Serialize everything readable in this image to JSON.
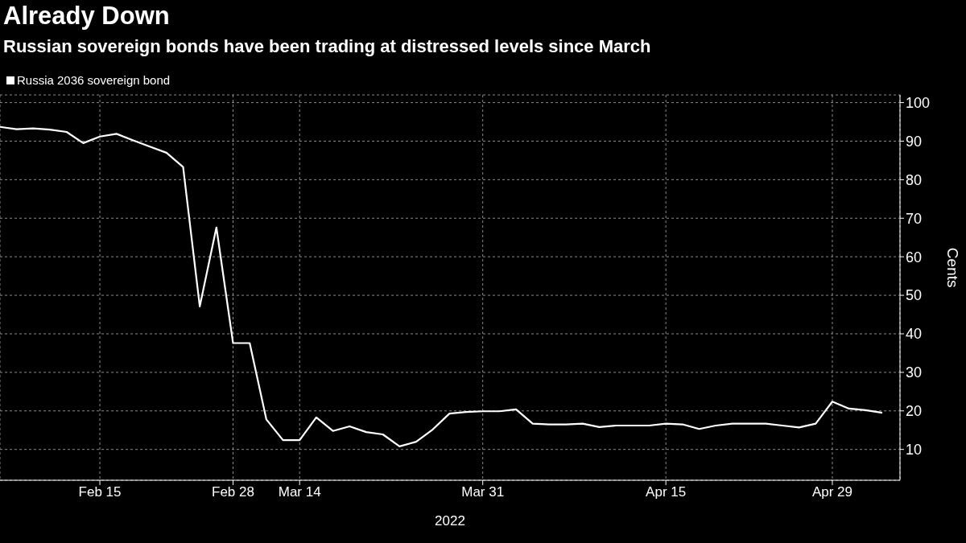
{
  "chart_data": {
    "type": "line",
    "title": "Already Down",
    "subtitle": "Russian sovereign bonds have been trading at distressed levels since March",
    "xlabel": "2022",
    "ylabel": "Cents",
    "categories": [
      null,
      null,
      null,
      null,
      null,
      null,
      "Feb 15",
      null,
      null,
      null,
      null,
      null,
      null,
      null,
      "Feb 28",
      null,
      null,
      null,
      "Mar 14",
      null,
      null,
      null,
      null,
      null,
      null,
      null,
      null,
      null,
      null,
      "Mar 31",
      null,
      null,
      null,
      null,
      null,
      null,
      null,
      null,
      null,
      null,
      "Apr 15",
      null,
      null,
      null,
      null,
      null,
      null,
      null,
      null,
      null,
      "Apr 29",
      null,
      null,
      null
    ],
    "series": [
      {
        "name": "Russia 2036 sovereign bond",
        "color": "#ffffff",
        "values": [
          93.7,
          93.1,
          93.3,
          93.0,
          92.4,
          89.5,
          91.2,
          91.9,
          90.2,
          88.6,
          87.0,
          83.3,
          47.1,
          67.6,
          37.6,
          37.6,
          17.8,
          12.4,
          12.4,
          18.3,
          14.8,
          16.0,
          14.5,
          13.9,
          10.8,
          12.0,
          15.2,
          19.3,
          19.7,
          19.9,
          19.9,
          20.4,
          16.7,
          16.5,
          16.5,
          16.7,
          15.8,
          16.2,
          16.2,
          16.2,
          16.7,
          16.5,
          15.3,
          16.2,
          16.7,
          16.7,
          16.7,
          16.2,
          15.7,
          16.7,
          22.4,
          20.6,
          20.2,
          19.5
        ]
      }
    ],
    "ylim": [
      2,
      102
    ],
    "yticks": [
      10,
      20,
      30,
      40,
      50,
      60,
      70,
      80,
      90,
      100
    ],
    "grid": true,
    "legend": "top left"
  }
}
